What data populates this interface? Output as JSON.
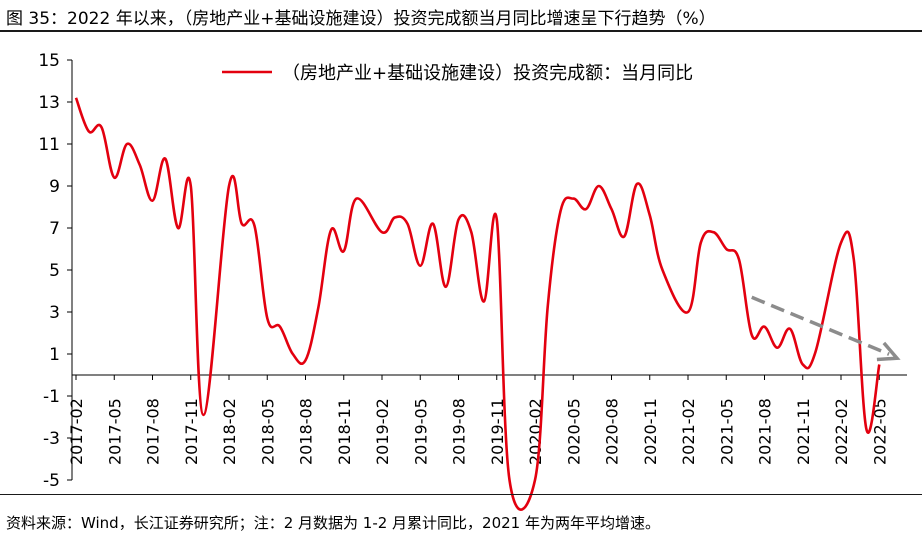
{
  "figure": {
    "title": "图 35：2022 年以来，（房地产业+基础设施建设）投资完成额当月同比增速呈下行趋势（%）",
    "source": "资料来源：Wind，长江证券研究所；注：2 月数据为 1-2 月累计同比，2021 年为两年平均增速。"
  },
  "chart_data": {
    "type": "line",
    "legend_position": "top-center",
    "grid": false,
    "ylim": [
      -5,
      15
    ],
    "yticks": [
      15,
      13,
      11,
      9,
      7,
      5,
      3,
      1,
      -1,
      -3,
      -5
    ],
    "xtick_labels": [
      "2017-02",
      "2017-05",
      "2017-08",
      "2017-11",
      "2018-02",
      "2018-05",
      "2018-08",
      "2018-11",
      "2019-02",
      "2019-05",
      "2019-08",
      "2019-11",
      "2020-02",
      "2020-05",
      "2020-08",
      "2020-11",
      "2021-02",
      "2021-05",
      "2021-08",
      "2021-11",
      "2022-02",
      "2022-05"
    ],
    "series_color": "#e3000f",
    "trend_arrow_color": "#8c8c8c",
    "trend_arrow": {
      "from": [
        "2021-07",
        3.7
      ],
      "to": [
        "2022-06",
        0.8
      ]
    },
    "series": [
      {
        "name": "（房地产业+基础设施建设）投资完成额：当月同比",
        "x": [
          "2017-02",
          "2017-03",
          "2017-04",
          "2017-05",
          "2017-06",
          "2017-07",
          "2017-08",
          "2017-09",
          "2017-10",
          "2017-11",
          "2017-12",
          "2018-02",
          "2018-03",
          "2018-04",
          "2018-05",
          "2018-06",
          "2018-07",
          "2018-08",
          "2018-09",
          "2018-10",
          "2018-11",
          "2018-12",
          "2019-02",
          "2019-03",
          "2019-04",
          "2019-05",
          "2019-06",
          "2019-07",
          "2019-08",
          "2019-09",
          "2019-10",
          "2019-11",
          "2019-12",
          "2020-02",
          "2020-03",
          "2020-04",
          "2020-05",
          "2020-06",
          "2020-07",
          "2020-08",
          "2020-09",
          "2020-10",
          "2020-11",
          "2020-12",
          "2021-02",
          "2021-03",
          "2021-04",
          "2021-05",
          "2021-06",
          "2021-07",
          "2021-08",
          "2021-09",
          "2021-10",
          "2021-11",
          "2021-12",
          "2022-02",
          "2022-03",
          "2022-04",
          "2022-05"
        ],
        "values": [
          13.2,
          11.6,
          11.8,
          9.4,
          11.0,
          10.0,
          8.3,
          10.3,
          7.0,
          9.0,
          -1.9,
          9.0,
          7.2,
          7.1,
          2.7,
          2.3,
          1.0,
          0.7,
          3.2,
          6.9,
          5.9,
          8.4,
          6.8,
          7.5,
          7.2,
          5.2,
          7.2,
          4.2,
          7.4,
          6.8,
          3.5,
          7.4,
          -5.0,
          -5.0,
          3.3,
          7.8,
          8.4,
          7.9,
          9.0,
          7.9,
          6.6,
          9.1,
          7.6,
          5.0,
          3.0,
          6.3,
          6.8,
          6.0,
          5.5,
          1.9,
          2.3,
          1.3,
          2.2,
          0.5,
          1.1,
          6.3,
          5.5,
          -2.6,
          0.5
        ]
      }
    ]
  }
}
